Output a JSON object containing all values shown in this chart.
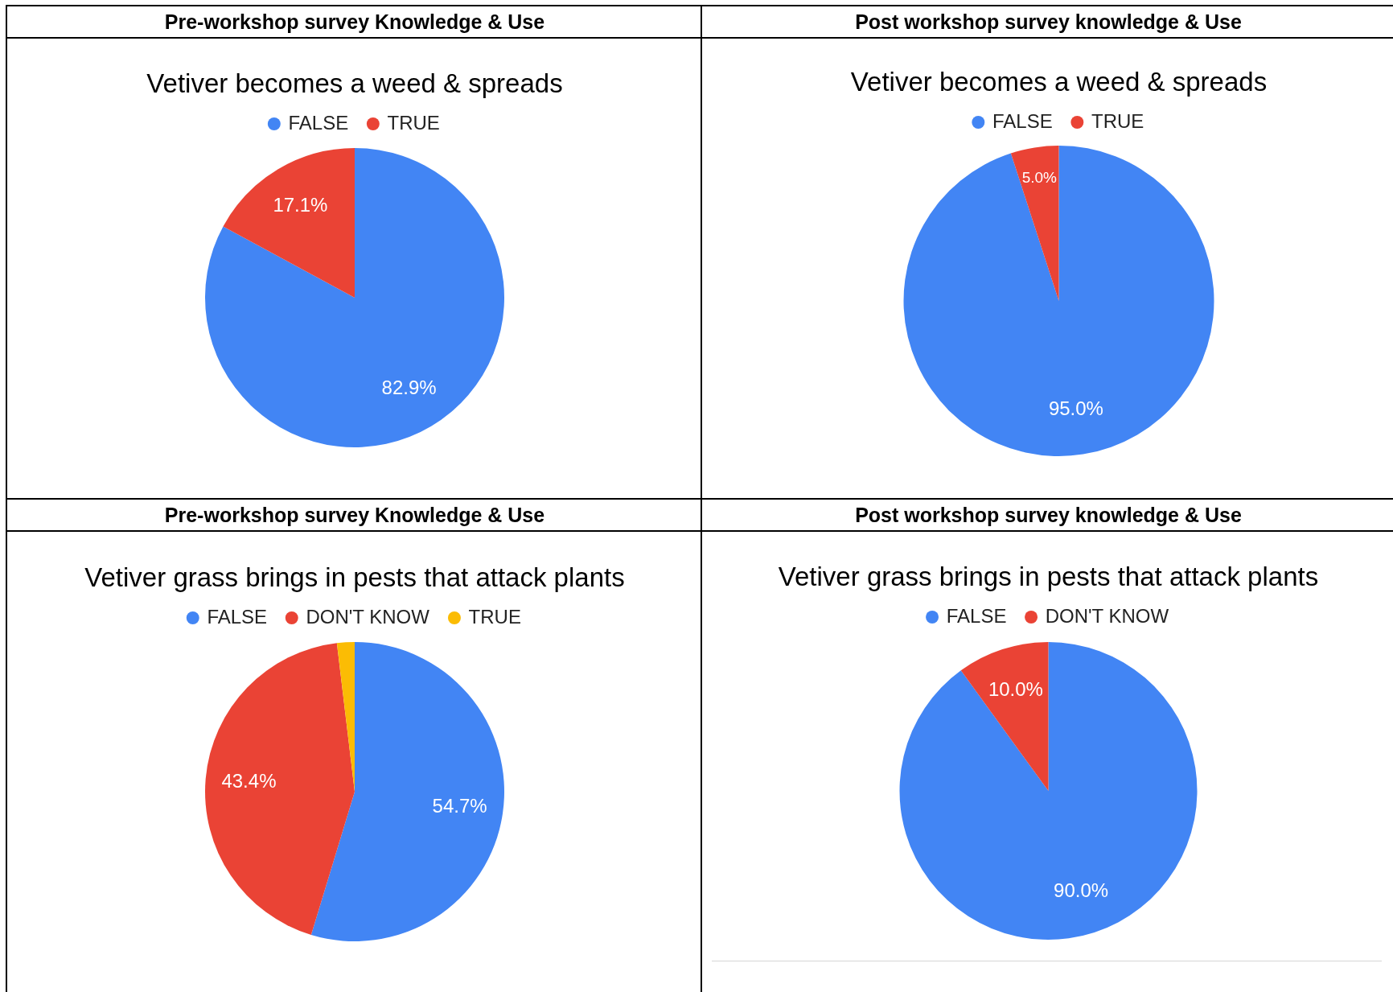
{
  "chart_data": [
    {
      "type": "pie",
      "title": "Pre-workshop survey Knowledge & Use",
      "subtitle": "Vetiver becomes a weed & spreads",
      "categories": [
        "FALSE",
        "TRUE"
      ],
      "values": [
        82.9,
        17.1
      ],
      "colors": [
        "#4285f4",
        "#ea4335"
      ],
      "value_labels": [
        "82.9%",
        "17.1%"
      ],
      "legend": "top"
    },
    {
      "type": "pie",
      "title": "Post workshop survey knowledge & Use",
      "subtitle": "Vetiver becomes a weed & spreads",
      "categories": [
        "FALSE",
        "TRUE"
      ],
      "values": [
        95.0,
        5.0
      ],
      "colors": [
        "#4285f4",
        "#ea4335"
      ],
      "value_labels": [
        "95.0%",
        "5.0%"
      ],
      "legend": "top"
    },
    {
      "type": "pie",
      "title": "Pre-workshop survey Knowledge & Use",
      "subtitle": "Vetiver grass brings in pests that attack plants",
      "categories": [
        "FALSE",
        "DON'T KNOW",
        "TRUE"
      ],
      "values": [
        54.7,
        43.4,
        1.9
      ],
      "colors": [
        "#4285f4",
        "#ea4335",
        "#fbbc04"
      ],
      "value_labels": [
        "54.7%",
        "43.4%",
        null
      ],
      "legend": "top"
    },
    {
      "type": "pie",
      "title": "Post workshop survey knowledge & Use",
      "subtitle": "Vetiver grass brings in pests that attack plants",
      "categories": [
        "FALSE",
        "DON'T KNOW"
      ],
      "values": [
        90.0,
        10.0
      ],
      "colors": [
        "#4285f4",
        "#ea4335"
      ],
      "value_labels": [
        "90.0%",
        "10.0%"
      ],
      "legend": "top"
    }
  ]
}
